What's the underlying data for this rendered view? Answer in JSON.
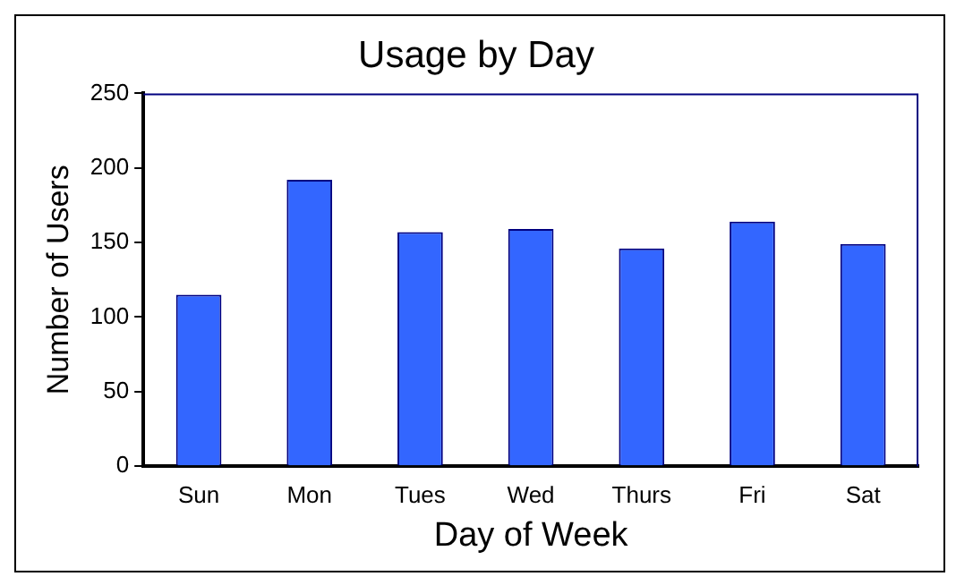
{
  "chart_data": {
    "type": "bar",
    "title": "Usage by Day",
    "xlabel": "Day of Week",
    "ylabel": "Number of Users",
    "categories": [
      "Sun",
      "Mon",
      "Tues",
      "Wed",
      "Thurs",
      "Fri",
      "Sat"
    ],
    "values": [
      115,
      192,
      157,
      159,
      146,
      164,
      149
    ],
    "color": "#3366ff",
    "ylim": [
      0,
      250
    ],
    "yticks": [
      0,
      50,
      100,
      150,
      200,
      250
    ],
    "grid": false,
    "legend": false
  }
}
